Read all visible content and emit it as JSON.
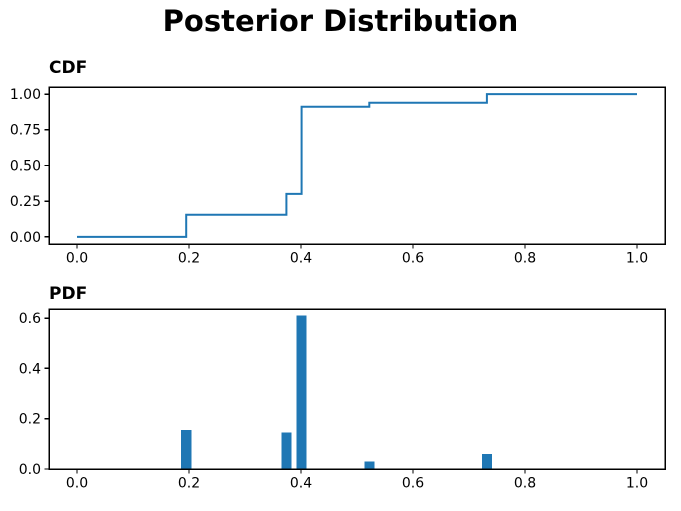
{
  "figure": {
    "title": "Posterior Distribution"
  },
  "colors": {
    "series_blue": "#1f77b4",
    "axis_black": "#000000"
  },
  "chart_data": [
    {
      "id": "cdf",
      "type": "line",
      "subtype": "step-post",
      "title": "CDF",
      "x": [
        0.0,
        0.195,
        0.374,
        0.401,
        0.522,
        0.732,
        1.0
      ],
      "y": [
        0.0,
        0.155,
        0.301,
        0.911,
        0.94,
        1.0,
        1.0
      ],
      "xlim": [
        -0.05,
        1.05
      ],
      "ylim": [
        -0.05,
        1.05
      ],
      "x_ticks": [
        {
          "v": 0.0,
          "label": "0.0"
        },
        {
          "v": 0.2,
          "label": "0.2"
        },
        {
          "v": 0.4,
          "label": "0.4"
        },
        {
          "v": 0.6,
          "label": "0.6"
        },
        {
          "v": 0.8,
          "label": "0.8"
        },
        {
          "v": 1.0,
          "label": "1.0"
        }
      ],
      "y_ticks": [
        {
          "v": 0.0,
          "label": "0.00"
        },
        {
          "v": 0.25,
          "label": "0.25"
        },
        {
          "v": 0.5,
          "label": "0.50"
        },
        {
          "v": 0.75,
          "label": "0.75"
        },
        {
          "v": 1.0,
          "label": "1.00"
        }
      ],
      "grid": false,
      "legend": null
    },
    {
      "id": "pdf",
      "type": "bar",
      "title": "PDF",
      "x": [
        0.195,
        0.374,
        0.401,
        0.522,
        0.732
      ],
      "values": [
        0.155,
        0.146,
        0.61,
        0.029,
        0.06
      ],
      "bar_width": 0.018,
      "xlim": [
        -0.05,
        1.05
      ],
      "ylim": [
        0,
        0.636
      ],
      "x_ticks": [
        {
          "v": 0.0,
          "label": "0.0"
        },
        {
          "v": 0.2,
          "label": "0.2"
        },
        {
          "v": 0.4,
          "label": "0.4"
        },
        {
          "v": 0.6,
          "label": "0.6"
        },
        {
          "v": 0.8,
          "label": "0.8"
        },
        {
          "v": 1.0,
          "label": "1.0"
        }
      ],
      "y_ticks": [
        {
          "v": 0.0,
          "label": "0.0"
        },
        {
          "v": 0.2,
          "label": "0.2"
        },
        {
          "v": 0.4,
          "label": "0.4"
        },
        {
          "v": 0.6,
          "label": "0.6"
        }
      ],
      "grid": false,
      "legend": null
    }
  ]
}
